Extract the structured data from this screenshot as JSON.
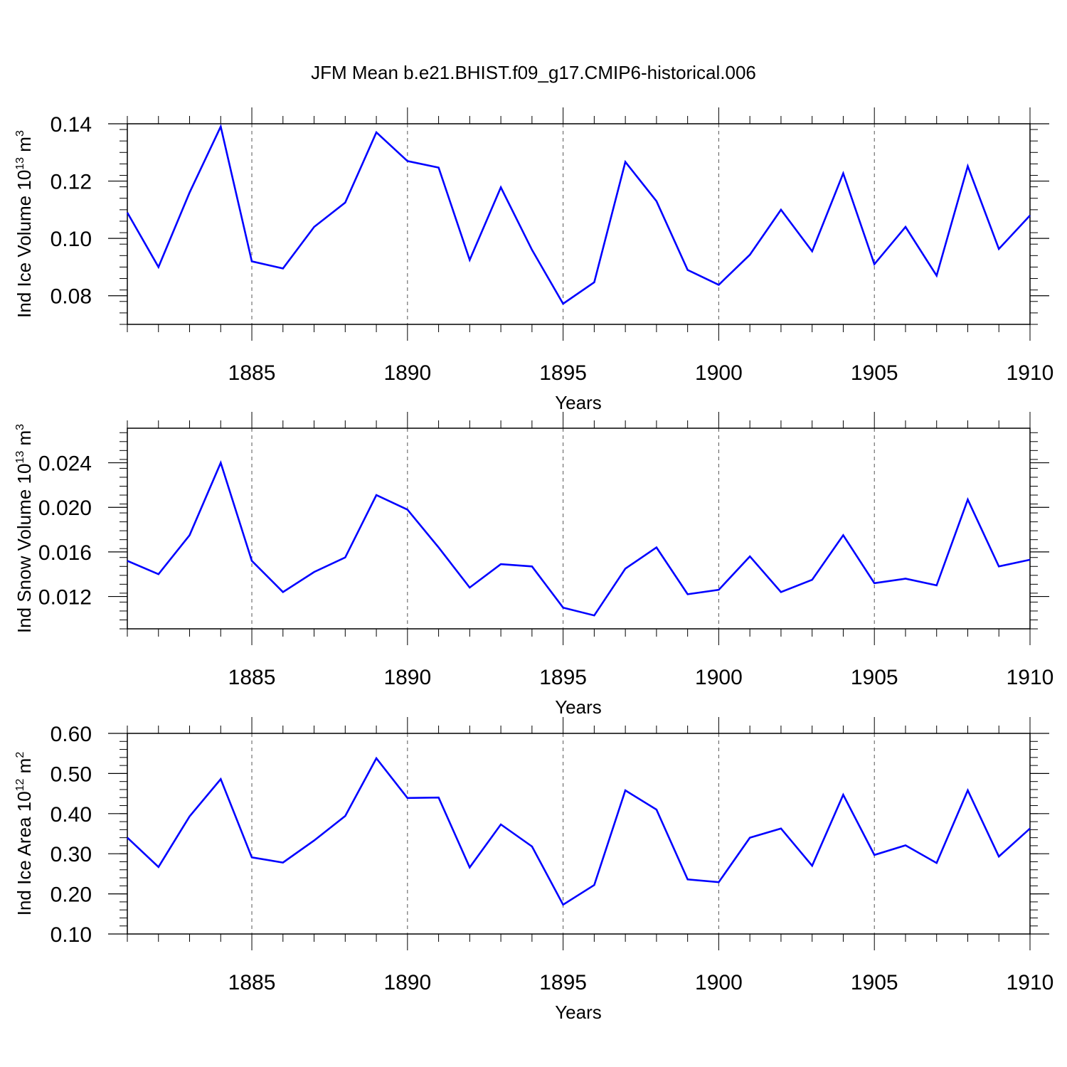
{
  "figure_title": "JFM Mean b.e21.BHIST.f09_g17.CMIP6-historical.006",
  "line_color": "#0000ff",
  "chart_data": [
    {
      "type": "line",
      "title": "JFM Mean b.e21.BHIST.f09_g17.CMIP6-historical.006",
      "xlabel": "Years",
      "ylabel": "Ind Ice Volume 10",
      "ylabel_exp": "13",
      "ylabel_unit": " m",
      "ylabel_unit_exp": "3",
      "xlim": [
        1881,
        1910
      ],
      "ylim": [
        0.07,
        0.14
      ],
      "yticks": [
        0.08,
        0.1,
        0.12,
        0.14
      ],
      "ytick_labels": [
        "0.08",
        "0.10",
        "0.12",
        "0.14"
      ],
      "yminor_step": 0.004,
      "xticks": [
        1885,
        1890,
        1895,
        1900,
        1905,
        1910
      ],
      "xtick_labels": [
        "1885",
        "1890",
        "1895",
        "1900",
        "1905",
        "1910"
      ],
      "grid": "vertical dashed at major x ticks",
      "series": [
        {
          "name": "Ind Ice Volume",
          "x": [
            1881,
            1882,
            1883,
            1884,
            1885,
            1886,
            1887,
            1888,
            1889,
            1890,
            1891,
            1892,
            1893,
            1894,
            1895,
            1896,
            1897,
            1898,
            1899,
            1900,
            1901,
            1902,
            1903,
            1904,
            1905,
            1906,
            1907,
            1908,
            1909,
            1910
          ],
          "values": [
            0.109,
            0.09,
            0.116,
            0.139,
            0.092,
            0.0895,
            0.104,
            0.1125,
            0.137,
            0.127,
            0.1247,
            0.0925,
            0.1178,
            0.096,
            0.0772,
            0.0847,
            0.1267,
            0.113,
            0.089,
            0.0838,
            0.0943,
            0.11,
            0.0955,
            0.1227,
            0.091,
            0.104,
            0.087,
            0.1252,
            0.0963,
            0.108
          ]
        }
      ]
    },
    {
      "type": "line",
      "title": "",
      "xlabel": "Years",
      "ylabel": "Ind Snow Volume 10",
      "ylabel_exp": "13",
      "ylabel_unit": " m",
      "ylabel_unit_exp": "3",
      "xlim": [
        1881,
        1910
      ],
      "ylim": [
        0.0091,
        0.0271
      ],
      "yticks": [
        0.012,
        0.016,
        0.02,
        0.024
      ],
      "ytick_labels": [
        "0.012",
        "0.016",
        "0.020",
        "0.024"
      ],
      "yminor_step": 0.0008,
      "xticks": [
        1885,
        1890,
        1895,
        1900,
        1905,
        1910
      ],
      "xtick_labels": [
        "1885",
        "1890",
        "1895",
        "1900",
        "1905",
        "1910"
      ],
      "grid": "vertical dashed at major x ticks",
      "series": [
        {
          "name": "Ind Snow Volume",
          "x": [
            1881,
            1882,
            1883,
            1884,
            1885,
            1886,
            1887,
            1888,
            1889,
            1890,
            1891,
            1892,
            1893,
            1894,
            1895,
            1896,
            1897,
            1898,
            1899,
            1900,
            1901,
            1902,
            1903,
            1904,
            1905,
            1906,
            1907,
            1908,
            1909,
            1910
          ],
          "values": [
            0.0152,
            0.014,
            0.0175,
            0.024,
            0.0152,
            0.0124,
            0.0142,
            0.0155,
            0.0211,
            0.0198,
            0.0164,
            0.0128,
            0.0149,
            0.0147,
            0.011,
            0.0103,
            0.0145,
            0.0164,
            0.0122,
            0.0126,
            0.0156,
            0.0124,
            0.0135,
            0.0175,
            0.0132,
            0.0136,
            0.013,
            0.0207,
            0.0147,
            0.0153
          ]
        }
      ]
    },
    {
      "type": "line",
      "title": "",
      "xlabel": "Years",
      "ylabel": "Ind Ice Area 10",
      "ylabel_exp": "12",
      "ylabel_unit": " m",
      "ylabel_unit_exp": "2",
      "xlim": [
        1881,
        1910
      ],
      "ylim": [
        0.1,
        0.6
      ],
      "yticks": [
        0.1,
        0.2,
        0.3,
        0.4,
        0.5,
        0.6
      ],
      "ytick_labels": [
        "0.10",
        "0.20",
        "0.30",
        "0.40",
        "0.50",
        "0.60"
      ],
      "yminor_step": 0.02,
      "xticks": [
        1885,
        1890,
        1895,
        1900,
        1905,
        1910
      ],
      "xtick_labels": [
        "1885",
        "1890",
        "1895",
        "1900",
        "1905",
        "1910"
      ],
      "grid": "vertical dashed at major x ticks",
      "series": [
        {
          "name": "Ind Ice Area",
          "x": [
            1881,
            1882,
            1883,
            1884,
            1885,
            1886,
            1887,
            1888,
            1889,
            1890,
            1891,
            1892,
            1893,
            1894,
            1895,
            1896,
            1897,
            1898,
            1899,
            1900,
            1901,
            1902,
            1903,
            1904,
            1905,
            1906,
            1907,
            1908,
            1909,
            1910
          ],
          "values": [
            0.34,
            0.267,
            0.393,
            0.486,
            0.291,
            0.278,
            0.333,
            0.394,
            0.538,
            0.439,
            0.44,
            0.266,
            0.373,
            0.318,
            0.173,
            0.222,
            0.458,
            0.41,
            0.236,
            0.229,
            0.34,
            0.363,
            0.27,
            0.447,
            0.297,
            0.321,
            0.277,
            0.458,
            0.293,
            0.363
          ]
        }
      ]
    }
  ]
}
